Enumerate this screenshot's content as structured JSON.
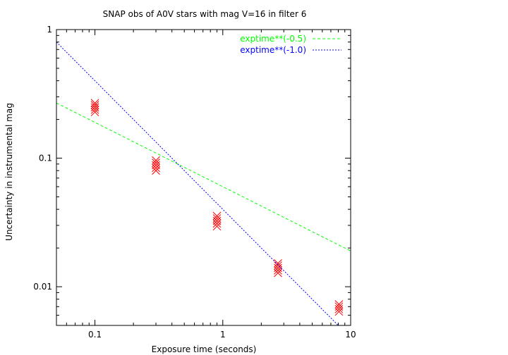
{
  "chart_data": {
    "type": "scatter",
    "title": "SNAP obs of A0V stars with mag V=16 in filter 6",
    "xlabel": "Exposure time (seconds)",
    "ylabel": "Uncertainty in instrumental mag",
    "xscale": "log",
    "yscale": "log",
    "xlim": [
      0.05,
      10
    ],
    "ylim": [
      0.005,
      1
    ],
    "x_ticks": [
      {
        "value": 0.1,
        "label": "0.1"
      },
      {
        "value": 1,
        "label": "1"
      },
      {
        "value": 10,
        "label": "10"
      }
    ],
    "y_ticks": [
      {
        "value": 0.01,
        "label": "0.01"
      },
      {
        "value": 0.1,
        "label": "0.1"
      },
      {
        "value": 1,
        "label": "1"
      }
    ],
    "legend_position": "top-right",
    "series": [
      {
        "marker": "x",
        "color": "#ff0000",
        "points": [
          {
            "x": 0.1,
            "y": [
              0.228,
              0.238,
              0.248,
              0.258,
              0.268
            ]
          },
          {
            "x": 0.3,
            "y": [
              0.08,
              0.084,
              0.088,
              0.092,
              0.096
            ]
          },
          {
            "x": 0.9,
            "y": [
              0.0295,
              0.031,
              0.0325,
              0.034,
              0.0355
            ]
          },
          {
            "x": 2.7,
            "y": [
              0.0128,
              0.0134,
              0.014,
              0.0146,
              0.0152
            ]
          },
          {
            "x": 8.1,
            "y": [
              0.0064,
              0.0067,
              0.007,
              0.0073
            ]
          }
        ]
      },
      {
        "name": "exptime**(-0.5)",
        "type": "line",
        "color": "#00ff00",
        "dash": "dashed",
        "formula": {
          "coef": 0.06,
          "power": -0.5
        }
      },
      {
        "name": "exptime**(-1.0)",
        "type": "line",
        "color": "#0000ff",
        "dash": "dotted",
        "formula": {
          "coef": 0.04,
          "power": -1.0
        }
      }
    ]
  }
}
